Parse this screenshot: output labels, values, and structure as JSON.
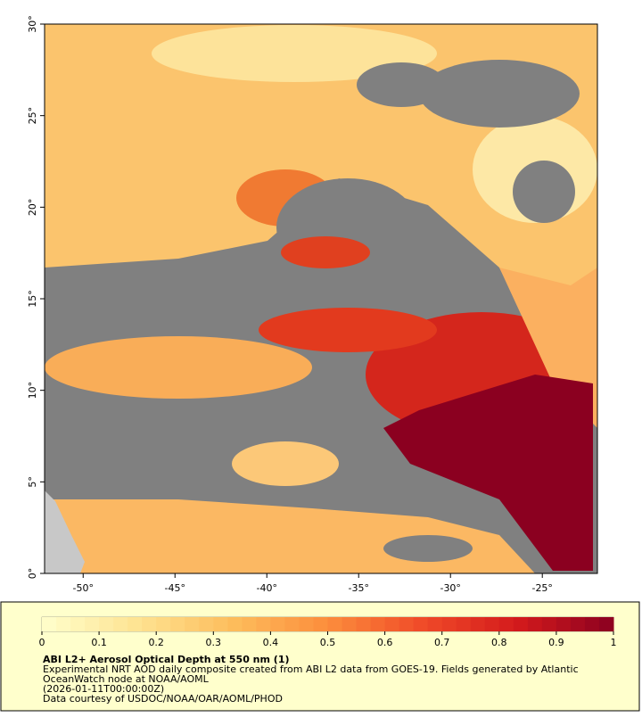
{
  "map": {
    "xlim": [
      -52.1,
      -22.0
    ],
    "ylim": [
      0,
      30
    ],
    "xticks": [
      {
        "value": -50,
        "label": "-50°"
      },
      {
        "value": -45,
        "label": "-45°"
      },
      {
        "value": -40,
        "label": "-40°"
      },
      {
        "value": -35,
        "label": "-35°"
      },
      {
        "value": -30,
        "label": "-30°"
      },
      {
        "value": -25,
        "label": "-25°"
      }
    ],
    "yticks": [
      {
        "value": 0,
        "label": "0°"
      },
      {
        "value": 5,
        "label": "5°"
      },
      {
        "value": 10,
        "label": "10°"
      },
      {
        "value": 15,
        "label": "15°"
      },
      {
        "value": 20,
        "label": "20°"
      },
      {
        "value": 25,
        "label": "25°"
      },
      {
        "value": 30,
        "label": "30°"
      }
    ]
  },
  "colorbar": {
    "lim": [
      0,
      1
    ],
    "ticks": [
      0,
      0.1,
      0.2,
      0.3,
      0.4,
      0.5,
      0.6,
      0.7,
      0.8,
      0.9,
      1
    ],
    "steps": 40,
    "colormap": [
      "#ffffcc",
      "#fee392",
      "#fdbd5c",
      "#fc8d3c",
      "#f04a28",
      "#d31a1c",
      "#8b0020"
    ]
  },
  "caption": {
    "title": "ABI L2+ Aerosol Optical Depth at 550 nm (1)",
    "lines": [
      "Experimental NRT AOD daily composite created from ABI L2 data from GOES-19. Fields generated by Atlantic",
      "OceanWatch node at NOAA/AOML",
      "(2026-01-11T00:00:00Z)",
      "Data courtesy of USDOC/NOAA/OAR/AOML/PHOD"
    ]
  }
}
